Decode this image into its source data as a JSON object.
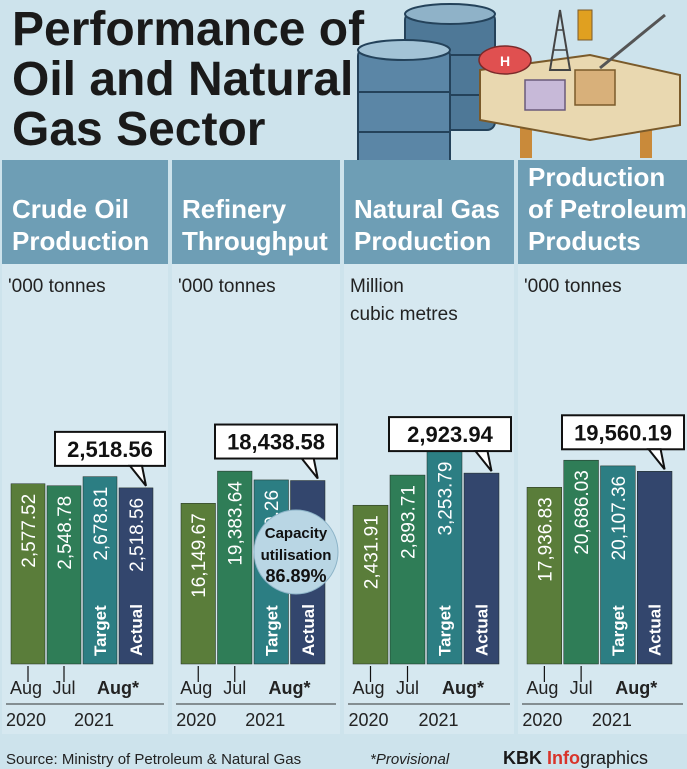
{
  "title_lines": [
    "Performance of",
    "Oil and Natural",
    "Gas Sector"
  ],
  "footer": {
    "source": "Source: Ministry of Petroleum & Natural Gas",
    "provisional": "*Provisional",
    "brand_kbk": "KBK ",
    "brand_info": "Info",
    "brand_graphics": "graphics"
  },
  "colors": {
    "background": "#cde3ec",
    "header_bg": "#6e9eb5",
    "panel_bg": "#d6e8f0",
    "aug2020": "#5a7d3a",
    "jul2021": "#2f7d57",
    "target": "#2c7e83",
    "actual": "#33466d",
    "brand_red": "#d8342a"
  },
  "chart_data": [
    {
      "type": "bar",
      "title_lines": [
        "Crude Oil",
        "Production"
      ],
      "unit_lines": [
        "'000 tonnes"
      ],
      "categories": [
        "Aug 2020",
        "Jul 2021",
        "Target",
        "Actual"
      ],
      "values": [
        2577.52,
        2548.78,
        2678.81,
        2518.56
      ],
      "labels": [
        "2,577.52",
        "2,548.78",
        "2,678.81",
        "2,518.56"
      ],
      "bar_text": [
        "",
        "",
        "Target",
        "Actual"
      ],
      "callout": "2,518.56",
      "x_top": [
        "Aug",
        "Jul",
        "Aug*"
      ],
      "x_bottom": [
        "2020",
        "2021"
      ]
    },
    {
      "type": "bar",
      "title_lines": [
        "Refinery",
        "Throughput"
      ],
      "unit_lines": [
        "'000 tonnes"
      ],
      "categories": [
        "Aug 2020",
        "Jul 2021",
        "Target",
        "Actual"
      ],
      "values": [
        16149.67,
        19383.64,
        18499.26,
        18438.58
      ],
      "labels": [
        "16,149.67",
        "19,383.64",
        "18,499.26",
        ""
      ],
      "bar_text": [
        "",
        "",
        "Target",
        "Actual"
      ],
      "callout": "18,438.58",
      "badge_lines": [
        "Capacity",
        "utilisation",
        "86.89%"
      ],
      "x_top": [
        "Aug",
        "Jul",
        "Aug*"
      ],
      "x_bottom": [
        "2020",
        "2021"
      ]
    },
    {
      "type": "bar",
      "title_lines": [
        "Natural Gas",
        "Production"
      ],
      "unit_lines": [
        "Million",
        "cubic metres"
      ],
      "categories": [
        "Aug 2020",
        "Jul 2021",
        "Target",
        "Actual"
      ],
      "values": [
        2431.91,
        2893.71,
        3253.79,
        2923.94
      ],
      "labels": [
        "2,431.91",
        "2,893.71",
        "3,253.79",
        ""
      ],
      "bar_text": [
        "",
        "",
        "Target",
        "Actual"
      ],
      "callout": "2,923.94",
      "x_top": [
        "Aug",
        "Jul",
        "Aug*"
      ],
      "x_bottom": [
        "2020",
        "2021"
      ]
    },
    {
      "type": "bar",
      "title_lines": [
        "Production",
        "of Petroleum",
        "Products"
      ],
      "unit_lines": [
        "'000 tonnes"
      ],
      "categories": [
        "Aug 2020",
        "Jul 2021",
        "Target",
        "Actual"
      ],
      "values": [
        17936.83,
        20686.03,
        20107.36,
        19560.19
      ],
      "labels": [
        "17,936.83",
        "20,686.03",
        "20,107.36",
        ""
      ],
      "bar_text": [
        "",
        "",
        "Target",
        "Actual"
      ],
      "callout": "19,560.19",
      "x_top": [
        "Aug",
        "Jul",
        "Aug*"
      ],
      "x_bottom": [
        "2020",
        "2021"
      ]
    }
  ]
}
